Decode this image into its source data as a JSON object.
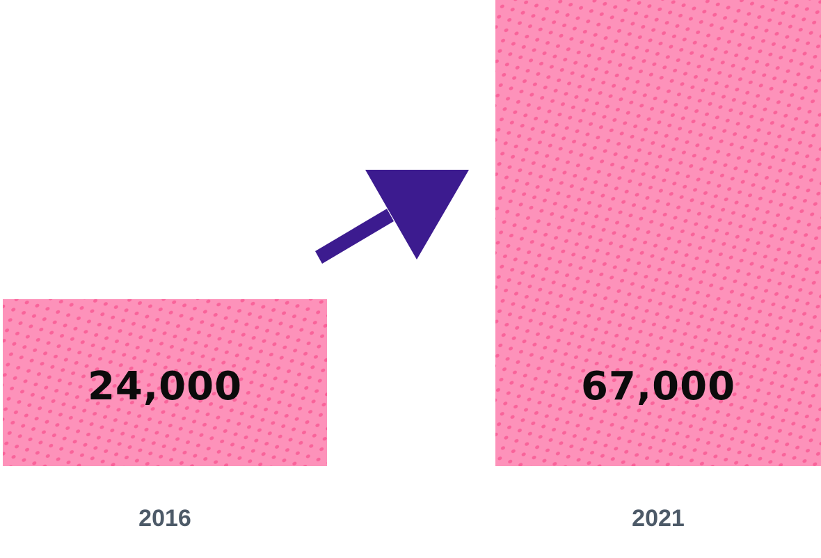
{
  "chart_data": {
    "type": "bar",
    "categories": [
      "2016",
      "2021"
    ],
    "values": [
      24000,
      67000
    ],
    "data_labels": [
      "24,000",
      "67,000"
    ],
    "title": "",
    "xlabel": "",
    "ylabel": "",
    "ylim": [
      0,
      67000
    ],
    "grid": false,
    "legend": "none",
    "colors": {
      "bar": "#fd92ba",
      "dots": "#f9639a",
      "arrow": "#3c1b8f",
      "value_text": "#0b0b0b",
      "category_text": "#4d5a68"
    },
    "annotations": [
      {
        "kind": "arrow",
        "icon": "up-right-arrow-icon",
        "meaning": "increase"
      }
    ]
  }
}
